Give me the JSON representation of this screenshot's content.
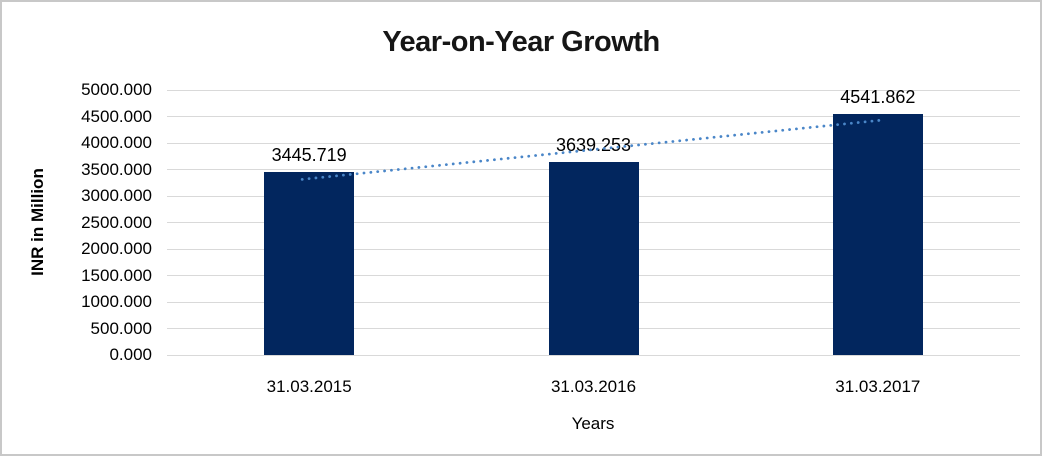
{
  "chart_data": {
    "type": "bar",
    "title": "Year-on-Year Growth",
    "xlabel": "Years",
    "ylabel": "INR in Million",
    "categories": [
      "31.03.2015",
      "31.03.2016",
      "31.03.2017"
    ],
    "values": [
      3445.719,
      3639.253,
      4541.862
    ],
    "data_labels": [
      "3445.719",
      "3639.253",
      "4541.862"
    ],
    "ylim": [
      0,
      5000
    ],
    "y_ticks": [
      {
        "value": 0,
        "label": "0.000"
      },
      {
        "value": 500,
        "label": "500.000"
      },
      {
        "value": 1000,
        "label": "1000.000"
      },
      {
        "value": 1500,
        "label": "1500.000"
      },
      {
        "value": 2000,
        "label": "2000.000"
      },
      {
        "value": 2500,
        "label": "2500.000"
      },
      {
        "value": 3000,
        "label": "3000.000"
      },
      {
        "value": 3500,
        "label": "3500.000"
      },
      {
        "value": 4000,
        "label": "4000.000"
      },
      {
        "value": 4500,
        "label": "4500.000"
      },
      {
        "value": 5000,
        "label": "5000.000"
      }
    ],
    "grid": true,
    "legend": false,
    "bar_color": "#02265e",
    "gridline_color": "#d9d9d9",
    "trendline": {
      "type": "linear",
      "style": "dotted",
      "color": "#4a86c8"
    }
  }
}
